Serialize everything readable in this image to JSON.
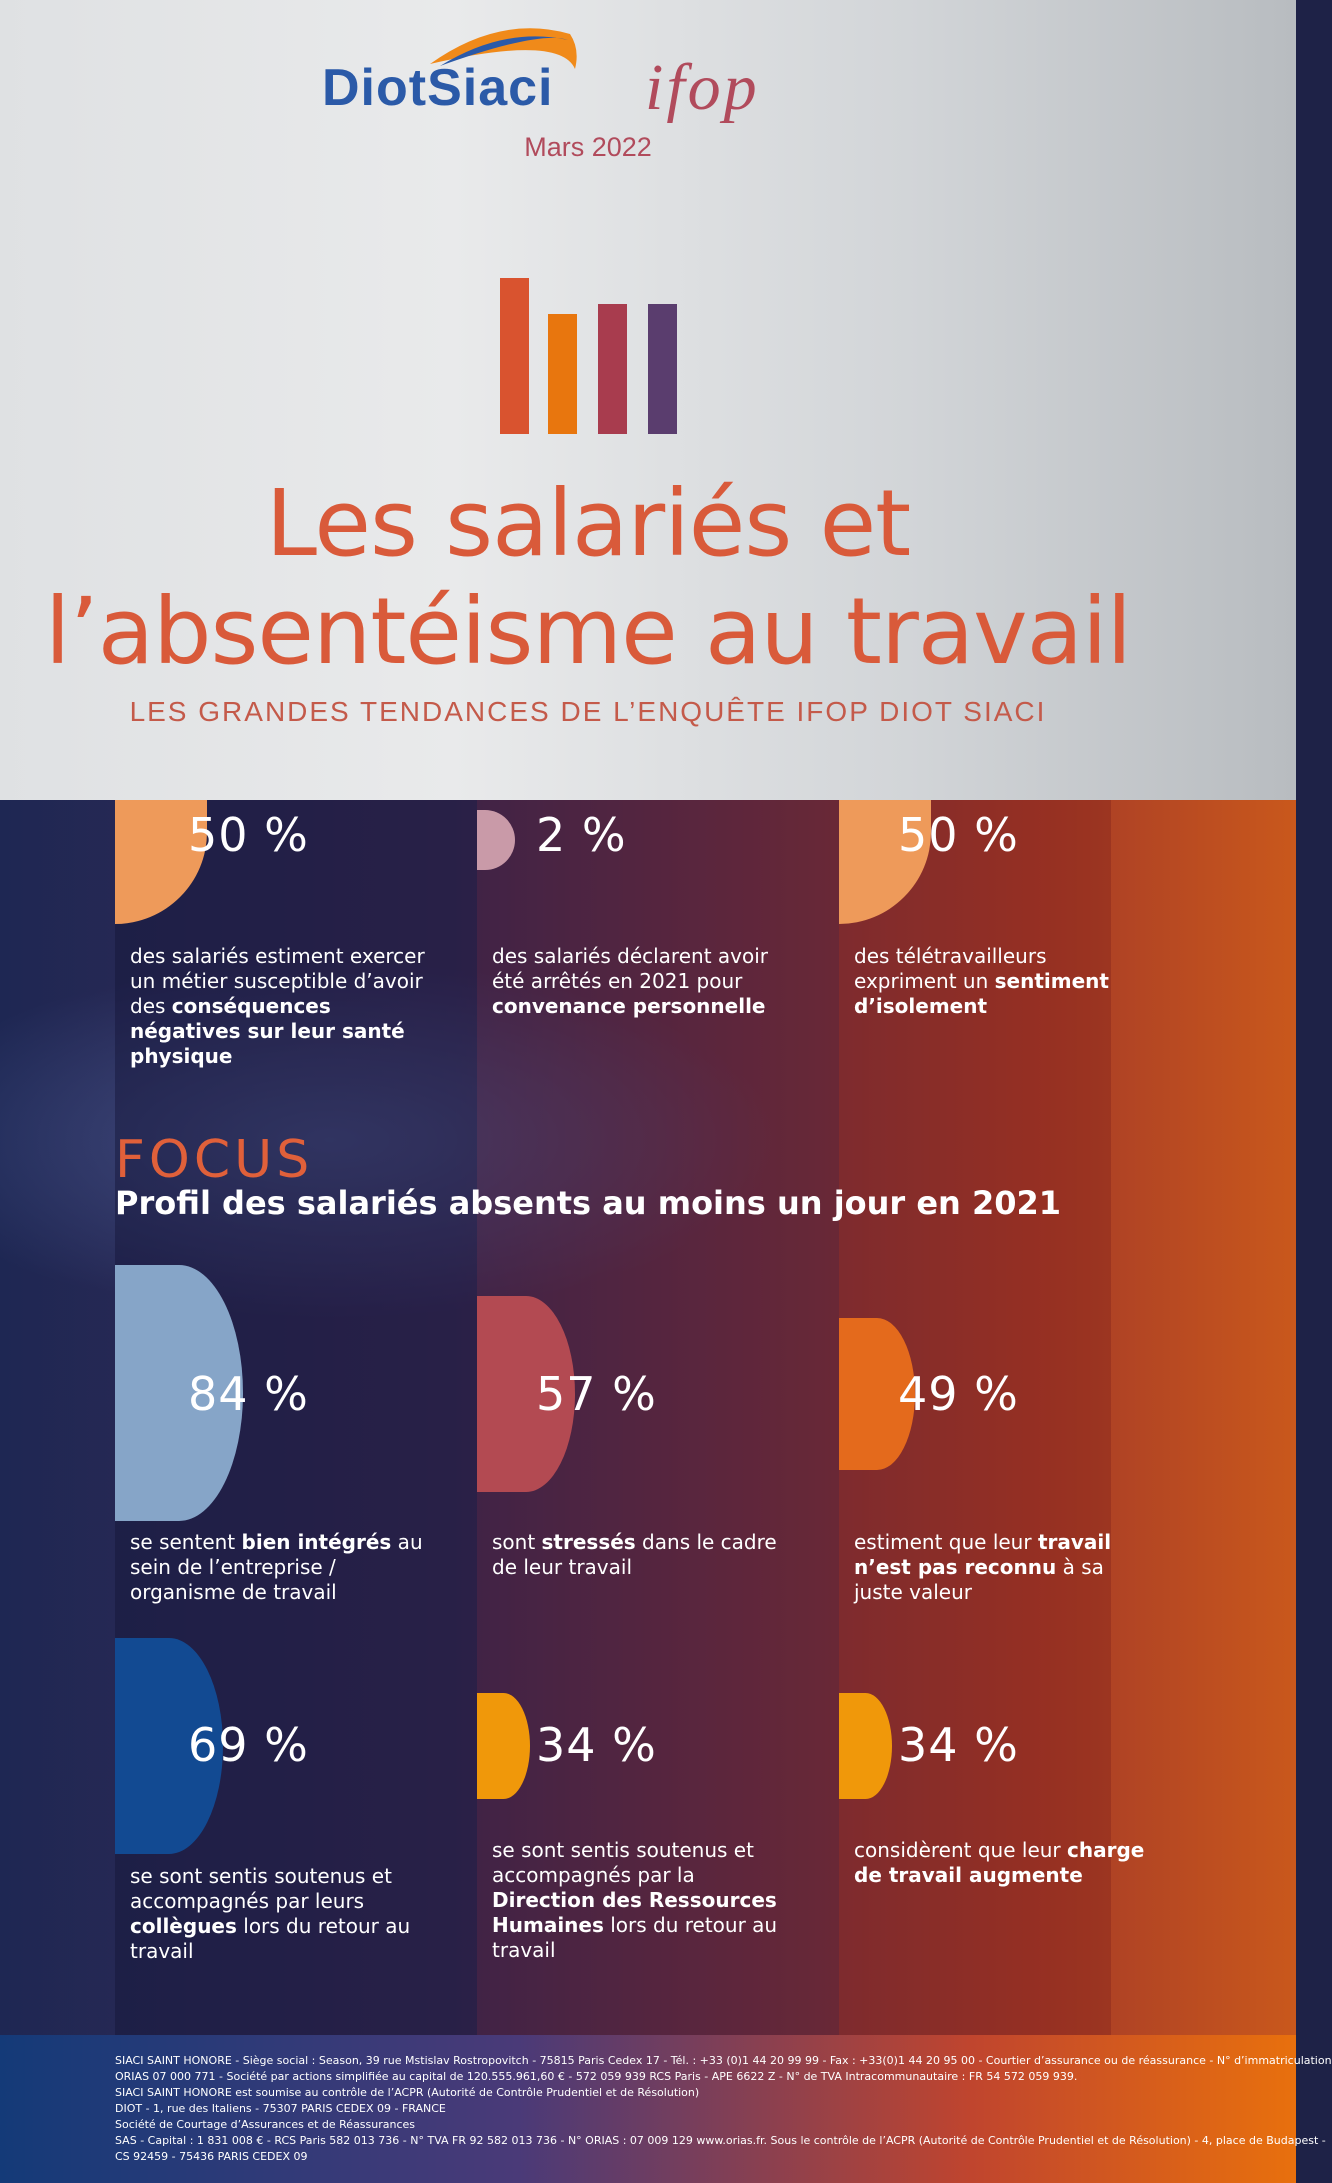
{
  "header": {
    "logo_diot": "DiotSiaci",
    "logo_ifop": "ifop",
    "date": "Mars 2022",
    "title_line1": "Les salariés et",
    "title_line2": "l’absentéisme au travail",
    "subtitle": "LES GRANDES TENDANCES DE L’ENQUÊTE IFOP DIOT SIACI"
  },
  "colors": {
    "orange_title": "#d95a3a",
    "bar_colors": [
      "#d9532f",
      "#e8760e",
      "#a83c4e",
      "#5a3d6e"
    ]
  },
  "top_stats": [
    {
      "value": "50 %",
      "fraction": 0.5,
      "color": "#ee9a5a",
      "pre": "des salariés estiment exercer un métier susceptible d’avoir des ",
      "bold": "conséquences négatives sur leur santé physique",
      "post": ""
    },
    {
      "value": "2 %",
      "fraction": 0.02,
      "color": "#c99aa8",
      "pre": "des salariés déclarent avoir été arrêtés en 2021 pour ",
      "bold": "convenance personnelle",
      "post": ""
    },
    {
      "value": "50 %",
      "fraction": 0.5,
      "color": "#ee9a5a",
      "pre": "des télétravailleurs expriment un ",
      "bold": "sentiment d’isolement",
      "post": ""
    }
  ],
  "focus": {
    "label": "FOCUS",
    "subtitle": "Profil des salariés absents au moins un jour en 2021"
  },
  "focus_stats": [
    {
      "value": "84 %",
      "fraction": 0.84,
      "color": "#86a5c8",
      "pre": "se sentent ",
      "bold": "bien intégrés",
      "post": " au sein de l’entreprise / organisme de travail"
    },
    {
      "value": "57 %",
      "fraction": 0.57,
      "color": "#b34a52",
      "pre": "sont ",
      "bold": "stressés",
      "post": " dans le cadre de leur travail"
    },
    {
      "value": "49 %",
      "fraction": 0.49,
      "color": "#e46a1c",
      "pre": "estiment que leur ",
      "bold": "travail n’est pas reconnu",
      "post": " à sa juste valeur"
    },
    {
      "value": "69 %",
      "fraction": 0.69,
      "color": "#124a92",
      "pre": "se sont sentis soutenus et accompagnés par leurs ",
      "bold": "collègues",
      "post": " lors du retour au travail"
    },
    {
      "value": "34 %",
      "fraction": 0.34,
      "color": "#f0980a",
      "pre": "se sont sentis soutenus et accompagnés par la ",
      "bold": "Direction des Ressources Humaines",
      "post": " lors du retour au travail"
    },
    {
      "value": "34 %",
      "fraction": 0.34,
      "color": "#f0980a",
      "pre": "considèrent que leur ",
      "bold": "charge de travail augmente",
      "post": ""
    }
  ],
  "footer": {
    "lines": [
      "SIACI SAINT HONORE - Siège social : Season, 39 rue Mstislav Rostropovitch - 75815 Paris Cedex 17 - Tél. : +33 (0)1 44 20 99 99 - Fax : +33(0)1 44 20 95 00 - Courtier d’assurance ou de réassurance - N° d’immatriculation",
      "ORIAS 07 000 771 - Société par actions simplifiée au capital de 120.555.961,60 € - 572 059 939 RCS Paris - APE 6622 Z - N° de TVA Intracommunautaire : FR 54 572 059 939.",
      "SIACI SAINT HONORE est soumise au contrôle de l’ACPR (Autorité de Contrôle Prudentiel et de Résolution)",
      "DIOT - 1, rue des Italiens - 75307 PARIS CEDEX 09 - FRANCE",
      "Société de Courtage d’Assurances et de Réassurances",
      "SAS - Capital : 1 831 008 € - RCS Paris 582 013 736 - N° TVA FR 92 582 013 736 - N° ORIAS : 07 009 129 www.orias.fr. Sous le contrôle de l’ACPR (Autorité de Contrôle Prudentiel et de Résolution) - 4, place de Budapest -",
      "CS 92459 - 75436 PARIS CEDEX 09"
    ]
  }
}
